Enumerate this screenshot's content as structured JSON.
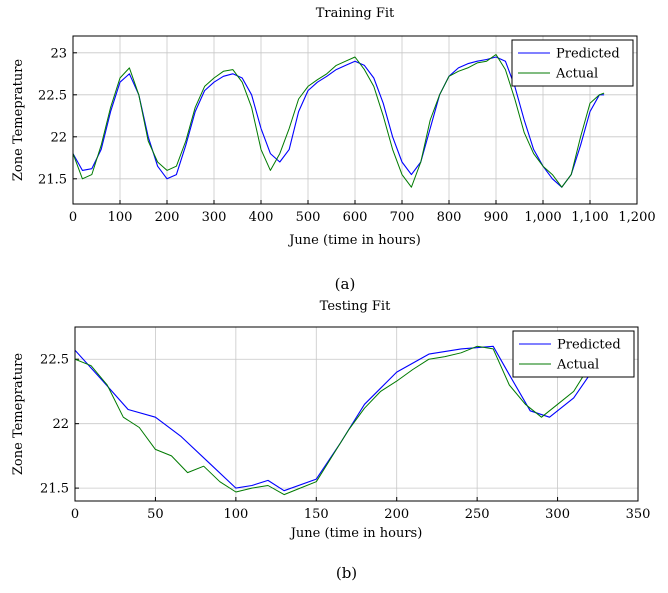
{
  "colors": {
    "predicted": "#0000ff",
    "actual": "#007a00"
  },
  "chart_data": [
    {
      "type": "line",
      "title": "Training Fit",
      "xlabel": "June (time in hours)",
      "ylabel": "Zone Temeprature",
      "caption": "(a)",
      "xlim": [
        0,
        1200
      ],
      "ylim": [
        21.2,
        23.2
      ],
      "xticks": [
        0,
        100,
        200,
        300,
        400,
        500,
        600,
        700,
        800,
        900,
        1000,
        1100,
        1200
      ],
      "xtick_labels": [
        "0",
        "100",
        "200",
        "300",
        "400",
        "500",
        "600",
        "700",
        "800",
        "900",
        "1,000",
        "1,100",
        "1,200"
      ],
      "yticks": [
        21.5,
        22,
        22.5,
        23
      ],
      "ytick_labels": [
        "21.5",
        "22",
        "22.5",
        "23"
      ],
      "grid": true,
      "legend_position": "top-right",
      "series": [
        {
          "name": "Predicted",
          "color": "#0000ff",
          "x": [
            0,
            20,
            40,
            60,
            80,
            100,
            120,
            140,
            160,
            180,
            200,
            220,
            240,
            260,
            280,
            300,
            320,
            340,
            360,
            380,
            400,
            420,
            440,
            460,
            480,
            500,
            520,
            540,
            560,
            580,
            600,
            620,
            640,
            660,
            680,
            700,
            720,
            740,
            760,
            780,
            800,
            820,
            840,
            860,
            880,
            900,
            920,
            940,
            960,
            980,
            1000,
            1020,
            1040,
            1060,
            1080,
            1100,
            1120,
            1130
          ],
          "y": [
            21.8,
            21.6,
            21.62,
            21.85,
            22.3,
            22.65,
            22.75,
            22.5,
            22.0,
            21.65,
            21.5,
            21.55,
            21.9,
            22.3,
            22.55,
            22.65,
            22.72,
            22.75,
            22.7,
            22.5,
            22.1,
            21.8,
            21.7,
            21.85,
            22.3,
            22.55,
            22.65,
            22.72,
            22.8,
            22.85,
            22.9,
            22.85,
            22.7,
            22.4,
            22.0,
            21.7,
            21.55,
            21.7,
            22.1,
            22.5,
            22.72,
            22.82,
            22.87,
            22.9,
            22.92,
            22.95,
            22.9,
            22.6,
            22.2,
            21.85,
            21.65,
            21.5,
            21.4,
            21.55,
            21.9,
            22.3,
            22.5,
            22.5
          ]
        },
        {
          "name": "Actual",
          "color": "#007a00",
          "x": [
            0,
            20,
            40,
            60,
            80,
            100,
            120,
            140,
            160,
            180,
            200,
            220,
            240,
            260,
            280,
            300,
            320,
            340,
            360,
            380,
            400,
            420,
            440,
            460,
            480,
            500,
            520,
            540,
            560,
            580,
            600,
            620,
            640,
            660,
            680,
            700,
            720,
            740,
            760,
            780,
            800,
            820,
            840,
            860,
            880,
            900,
            920,
            940,
            960,
            980,
            1000,
            1020,
            1040,
            1060,
            1080,
            1100,
            1120,
            1130
          ],
          "y": [
            21.8,
            21.5,
            21.55,
            21.9,
            22.35,
            22.7,
            22.82,
            22.5,
            21.95,
            21.7,
            21.6,
            21.65,
            21.95,
            22.35,
            22.6,
            22.7,
            22.78,
            22.8,
            22.65,
            22.35,
            21.85,
            21.6,
            21.8,
            22.1,
            22.45,
            22.6,
            22.68,
            22.75,
            22.85,
            22.9,
            22.95,
            22.8,
            22.6,
            22.25,
            21.85,
            21.55,
            21.4,
            21.7,
            22.2,
            22.5,
            22.72,
            22.78,
            22.82,
            22.88,
            22.9,
            22.98,
            22.8,
            22.45,
            22.05,
            21.8,
            21.65,
            21.55,
            21.4,
            21.55,
            22.0,
            22.4,
            22.5,
            22.52
          ]
        }
      ]
    },
    {
      "type": "line",
      "title": "Testing Fit",
      "xlabel": "June (time in hours)",
      "ylabel": "Zone Temeprature",
      "caption": "(b)",
      "xlim": [
        0,
        350
      ],
      "ylim": [
        21.4,
        22.75
      ],
      "xticks": [
        0,
        50,
        100,
        150,
        200,
        250,
        300,
        350
      ],
      "xtick_labels": [
        "0",
        "50",
        "100",
        "150",
        "200",
        "250",
        "300",
        "350"
      ],
      "yticks": [
        21.5,
        22,
        22.5
      ],
      "ytick_labels": [
        "21.5",
        "22",
        "22.5"
      ],
      "grid": true,
      "legend_position": "top-right",
      "series": [
        {
          "name": "Predicted",
          "color": "#0000ff",
          "x": [
            0,
            16,
            33,
            50,
            66,
            83,
            100,
            110,
            120,
            130,
            150,
            165,
            180,
            200,
            220,
            240,
            260,
            270,
            283,
            295,
            310,
            320,
            325
          ],
          "y": [
            22.57,
            22.35,
            22.11,
            22.05,
            21.9,
            21.7,
            21.5,
            21.52,
            21.56,
            21.48,
            21.57,
            21.85,
            22.15,
            22.4,
            22.54,
            22.58,
            22.6,
            22.38,
            22.1,
            22.05,
            22.2,
            22.38,
            22.5
          ]
        },
        {
          "name": "Actual",
          "color": "#007a00",
          "x": [
            0,
            10,
            20,
            30,
            40,
            50,
            60,
            70,
            80,
            90,
            100,
            110,
            120,
            130,
            140,
            150,
            160,
            170,
            180,
            190,
            200,
            210,
            220,
            230,
            240,
            250,
            260,
            270,
            280,
            290,
            300,
            310,
            320
          ],
          "y": [
            22.5,
            22.45,
            22.3,
            22.05,
            21.97,
            21.8,
            21.75,
            21.62,
            21.67,
            21.55,
            21.47,
            21.5,
            21.52,
            21.45,
            21.5,
            21.55,
            21.75,
            21.95,
            22.12,
            22.25,
            22.33,
            22.42,
            22.5,
            22.52,
            22.55,
            22.6,
            22.58,
            22.3,
            22.15,
            22.05,
            22.15,
            22.25,
            22.45
          ]
        }
      ]
    }
  ]
}
